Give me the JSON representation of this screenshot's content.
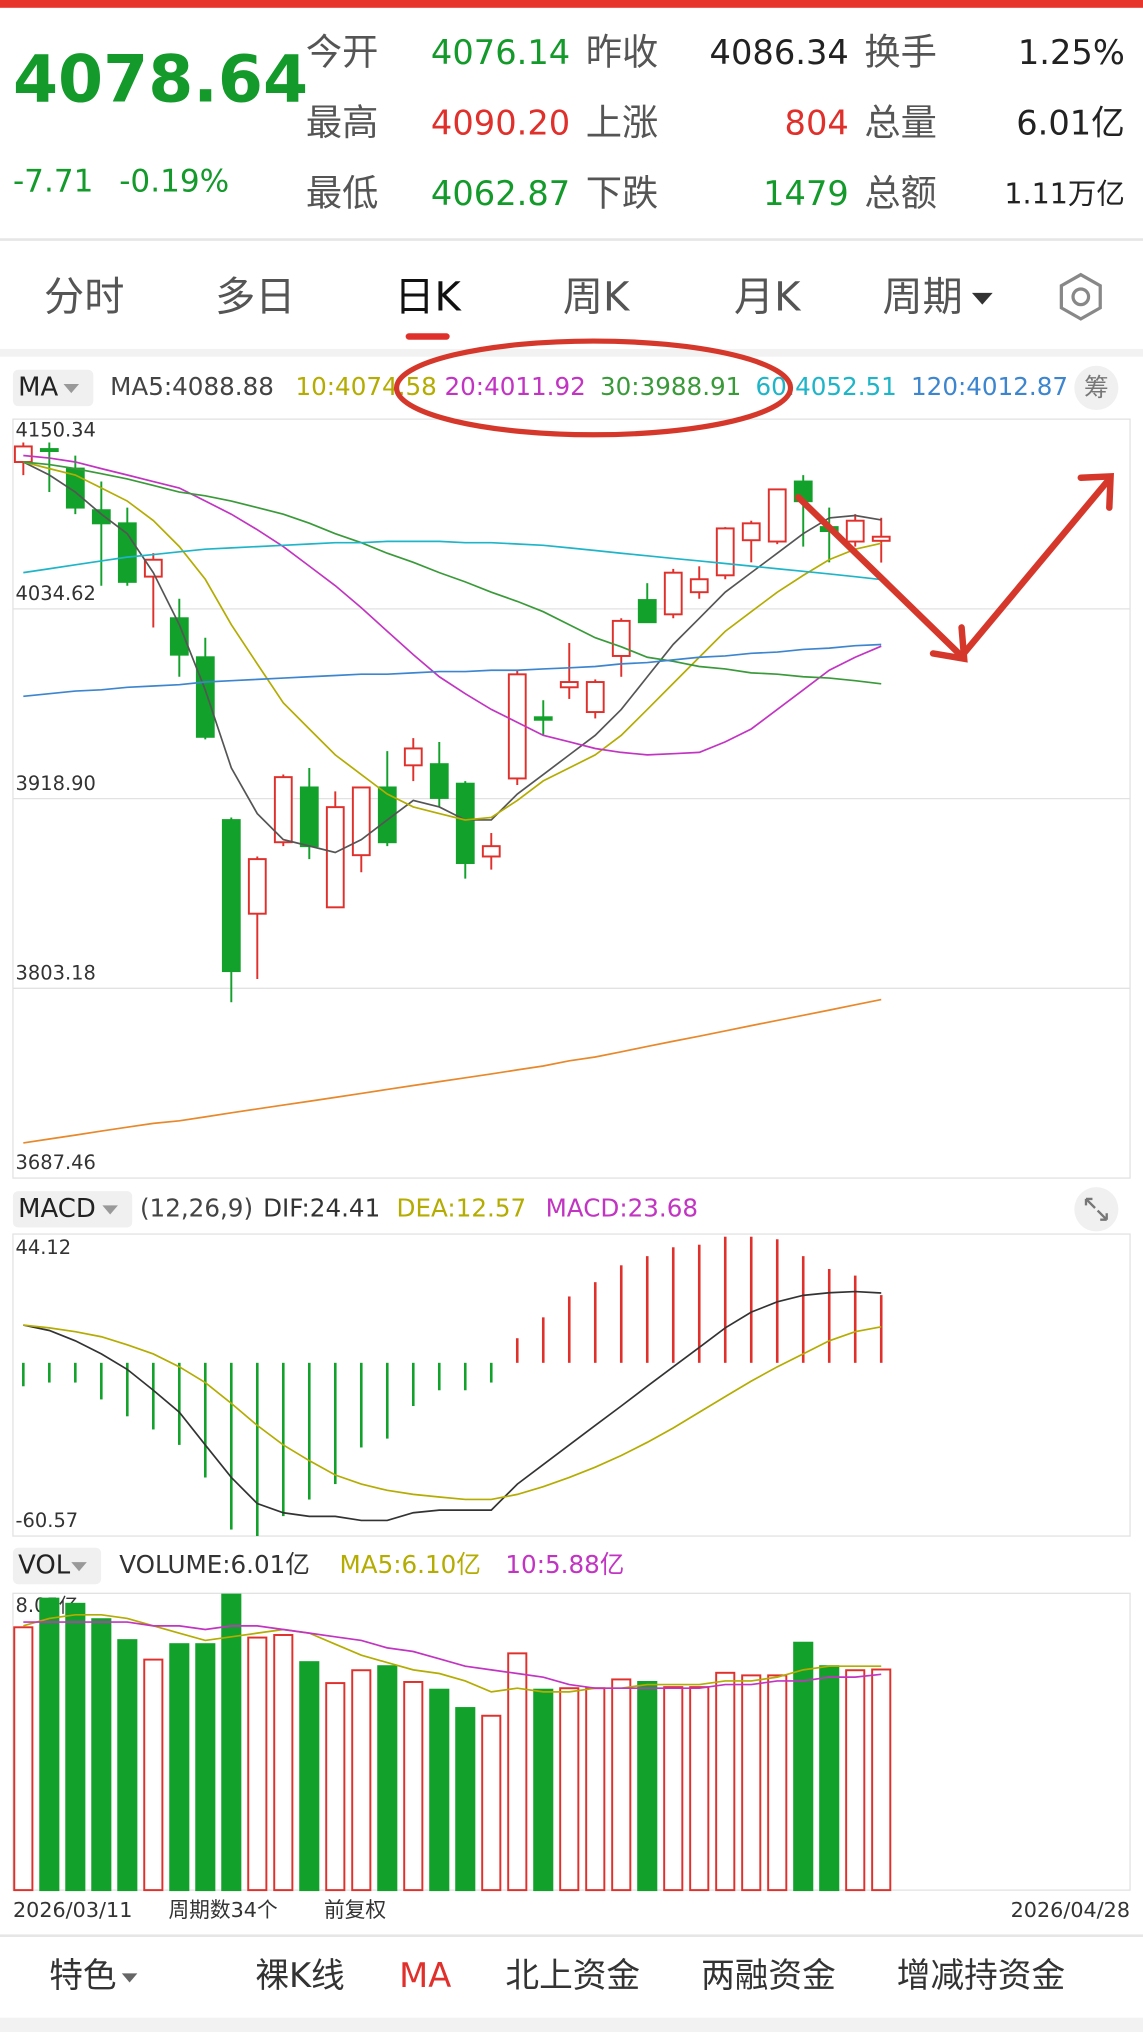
{
  "quote": {
    "price": "4078.64",
    "change": "-7.71",
    "change_pct": "-0.19%",
    "color": "#139a2b",
    "fields": [
      {
        "label": "今开",
        "value": "4076.14",
        "color": "#139a2b"
      },
      {
        "label": "昨收",
        "value": "4086.34",
        "color": "#222222"
      },
      {
        "label": "换手",
        "value": "1.25%",
        "color": "#222222"
      },
      {
        "label": "最高",
        "value": "4090.20",
        "color": "#e0302c"
      },
      {
        "label": "上涨",
        "value": "804",
        "color": "#e0302c"
      },
      {
        "label": "总量",
        "value": "6.01亿",
        "color": "#222222"
      },
      {
        "label": "最低",
        "value": "4062.87",
        "color": "#139a2b"
      },
      {
        "label": "下跌",
        "value": "1479",
        "color": "#139a2b"
      },
      {
        "label": "总额",
        "value": "1.11万亿",
        "color": "#222222"
      }
    ]
  },
  "tabs": {
    "items": [
      "分时",
      "多日",
      "日K",
      "周K",
      "月K",
      "周期"
    ],
    "active": 2
  },
  "bottom_tabs": {
    "items": [
      "特色",
      "裸K线",
      "MA",
      "北上资金",
      "两融资金",
      "增减持资金"
    ],
    "active": 2
  },
  "chart_data": [
    {
      "type": "candlestick",
      "indicator": "MA",
      "button": "筹",
      "legend": [
        "MA5:4088.88",
        "10:4074.58",
        "20:4011.92",
        "30:3988.91",
        "60:4052.51",
        "120:4012.87"
      ],
      "legend_colors": [
        "#444444",
        "#b4ac00",
        "#c234c2",
        "#3a9a3a",
        "#1fb5c8",
        "#3d86cf"
      ],
      "up_color": "#e0302c",
      "down_color": "#12a12a",
      "grid": true,
      "ylim": [
        3687.46,
        4150.34
      ],
      "yticks": [
        3687.46,
        3803.18,
        {
          "value": 3918.9,
          "label": "3918.90"
        },
        4034.62,
        4150.34
      ],
      "open": [
        4124.2,
        4132.1,
        4120.2,
        4094.8,
        4086.8,
        4054.3,
        4028.9,
        4005.1,
        3905.8,
        3848.7,
        3892.3,
        3925.7,
        3852.6,
        3884.4,
        3925.7,
        3939.2,
        3939.9,
        3928.0,
        3883.6,
        3931.2,
        3968.5,
        3986.8,
        3971.7,
        4005.9,
        4040.0,
        4031.3,
        4044.8,
        4055.1,
        4076.5,
        4075.7,
        4112.3,
        4084.5,
        4075.7,
        4076.14
      ],
      "high": [
        4136.1,
        4136.1,
        4128.1,
        4112.3,
        4096.4,
        4068.6,
        4040.8,
        4017.0,
        3907.4,
        3883.6,
        3933.6,
        3937.6,
        3923.3,
        3925.7,
        3947.9,
        3955.8,
        3953.4,
        3929.6,
        3897.9,
        3997.1,
        3978.9,
        4013.8,
        3991.6,
        4028.9,
        4050.3,
        4059.0,
        4060.6,
        4084.5,
        4088.4,
        4107.5,
        4116.2,
        4096.4,
        4092.4,
        4090.2
      ],
      "low": [
        4116.2,
        4105.9,
        4092.4,
        4048.7,
        4048.7,
        4023.3,
        3993.2,
        3955.0,
        3794.7,
        3808.9,
        3889.9,
        3882.0,
        3852.6,
        3874.0,
        3889.9,
        3929.6,
        3913.7,
        3870.1,
        3875.6,
        3927.2,
        3957.4,
        3979.7,
        3967.8,
        3993.2,
        4026.5,
        4028.9,
        4040.8,
        4052.7,
        4063.0,
        4074.1,
        4072.6,
        4063.0,
        4072.6,
        4062.87
      ],
      "close": [
        4133.7,
        4131.3,
        4096.4,
        4086.8,
        4051.1,
        4064.6,
        4006.7,
        3956.6,
        3813.7,
        3882.0,
        3932.0,
        3889.9,
        3913.7,
        3925.7,
        3892.3,
        3949.5,
        3919.3,
        3879.6,
        3889.9,
        3994.7,
        3967.0,
        3990.0,
        3990.0,
        4027.3,
        4026.5,
        4056.7,
        4052.7,
        4083.7,
        4086.8,
        4107.5,
        4100.3,
        4082.1,
        4088.4,
        4078.64
      ],
      "series": [
        {
          "color": "#555555",
          "values": [
            4124.2,
            4116.3,
            4105.9,
            4092.4,
            4080.5,
            4056.7,
            4025.0,
            3985.2,
            3937.6,
            3909.8,
            3893.9,
            3890.0,
            3886.0,
            3893.9,
            3905.9,
            3917.8,
            3913.8,
            3905.9,
            3905.9,
            3921.7,
            3933.6,
            3945.6,
            3957.5,
            3973.3,
            3993.2,
            4013.0,
            4028.9,
            4044.8,
            4056.7,
            4068.6,
            4080.5,
            4090.1,
            4091.6,
            4088.9
          ]
        },
        {
          "color": "#b4ac00",
          "values": [
            4124.2,
            4120.2,
            4116.3,
            4108.3,
            4100.4,
            4088.5,
            4072.6,
            4052.7,
            4025.0,
            4001.1,
            3977.3,
            3961.4,
            3945.6,
            3933.6,
            3921.7,
            3913.8,
            3909.8,
            3905.9,
            3907.4,
            3917.8,
            3929.7,
            3937.6,
            3945.6,
            3957.5,
            3973.3,
            3989.2,
            4005.1,
            4020.9,
            4032.9,
            4044.8,
            4055.1,
            4064.7,
            4071.0,
            4074.6
          ]
        },
        {
          "color": "#c234c2",
          "values": [
            4128.2,
            4126.6,
            4124.2,
            4120.2,
            4116.3,
            4112.3,
            4108.3,
            4100.4,
            4092.4,
            4082.9,
            4072.6,
            4060.7,
            4048.8,
            4035.3,
            4021.0,
            4006.7,
            3993.2,
            3982.9,
            3973.3,
            3965.4,
            3957.5,
            3953.5,
            3949.5,
            3947.1,
            3945.6,
            3946.3,
            3947.1,
            3953.5,
            3961.4,
            3973.3,
            3985.2,
            3997.2,
            4005.1,
            4011.9
          ]
        },
        {
          "color": "#3a9a3a",
          "values": [
            4124.2,
            4122.6,
            4120.2,
            4117.1,
            4113.9,
            4109.9,
            4105.9,
            4103.6,
            4100.4,
            4096.4,
            4092.4,
            4086.9,
            4080.5,
            4075.0,
            4068.6,
            4063.0,
            4056.7,
            4051.1,
            4044.8,
            4039.2,
            4032.9,
            4025.0,
            4017.0,
            4011.5,
            4005.1,
            4002.7,
            3999.5,
            3998.0,
            3995.6,
            3994.8,
            3993.2,
            3992.4,
            3990.8,
            3988.9
          ]
        },
        {
          "color": "#1fb5c8",
          "values": [
            4056.7,
            4059.1,
            4061.5,
            4063.9,
            4066.2,
            4067.8,
            4069.4,
            4071.0,
            4071.8,
            4072.6,
            4073.4,
            4074.2,
            4075.0,
            4075.0,
            4075.8,
            4075.8,
            4075.8,
            4075.0,
            4075.0,
            4074.2,
            4073.4,
            4071.8,
            4070.2,
            4068.6,
            4067.0,
            4065.4,
            4063.9,
            4062.3,
            4060.7,
            4059.1,
            4057.5,
            4055.9,
            4054.3,
            4052.5
          ]
        },
        {
          "color": "#3d86cf",
          "values": [
            3981.3,
            3982.9,
            3984.5,
            3985.3,
            3986.8,
            3987.6,
            3988.4,
            3990.0,
            3990.8,
            3991.6,
            3992.4,
            3993.2,
            3994.0,
            3994.8,
            3994.8,
            3995.6,
            3996.4,
            3996.4,
            3997.2,
            3997.2,
            3998.0,
            3998.7,
            3999.5,
            4001.1,
            4001.9,
            4003.5,
            4005.1,
            4005.9,
            4007.5,
            4008.3,
            4009.9,
            4010.7,
            4012.2,
            4012.9
          ]
        },
        {
          "color": "#e8882a",
          "values": [
            3708.9,
            3711.3,
            3713.7,
            3716.1,
            3718.5,
            3720.8,
            3722.4,
            3724.8,
            3727.2,
            3729.6,
            3732.0,
            3734.3,
            3736.7,
            3739.1,
            3741.5,
            3743.9,
            3746.3,
            3748.6,
            3751.0,
            3753.4,
            3755.8,
            3759.0,
            3761.3,
            3764.5,
            3767.7,
            3770.9,
            3774.0,
            3777.2,
            3780.4,
            3783.6,
            3786.7,
            3789.9,
            3793.1,
            3796.3
          ]
        }
      ]
    },
    {
      "type": "macd",
      "indicator": "MACD",
      "params": "(12,26,9)",
      "legend": [
        "DIF:24.41",
        "DEA:12.57",
        "MACD:23.68"
      ],
      "legend_colors": [
        "#333333",
        "#b4ac00",
        "#c234c2"
      ],
      "up_color": "#e0302c",
      "down_color": "#12a12a",
      "grid": false,
      "ylim": [
        -60.57,
        44.12
      ],
      "yticks": [
        44.12,
        -60.57
      ],
      "values": [
        -8.2,
        -6.9,
        -6.9,
        -12.8,
        -18.7,
        -23.3,
        -28.7,
        -40.1,
        -58.3,
        -60.57,
        -53.6,
        -47.8,
        -42.4,
        -29.6,
        -26.5,
        -15.1,
        -9.6,
        -9.6,
        -6.9,
        8.6,
        15.9,
        23.2,
        28.2,
        34.1,
        37.3,
        40.4,
        41.3,
        44.1,
        44.1,
        43.2,
        37.3,
        32.8,
        30.5,
        23.68
      ],
      "series": [
        {
          "color": "#333333",
          "values": [
            13.2,
            11.3,
            7.7,
            3.1,
            -2.3,
            -9.6,
            -17.3,
            -28.7,
            -40.1,
            -49.2,
            -52.4,
            -53.7,
            -53.7,
            -55.1,
            -55.1,
            -52.4,
            -51.5,
            -51.5,
            -51.5,
            -42.4,
            -35.6,
            -28.7,
            -21.9,
            -15.1,
            -8.2,
            -1.4,
            5.4,
            12.2,
            17.7,
            21.3,
            23.6,
            24.5,
            24.9,
            24.41
          ]
        },
        {
          "color": "#b4ac00",
          "values": [
            13.2,
            12.2,
            10.9,
            9.1,
            6.3,
            3.1,
            -1.4,
            -6.9,
            -14.2,
            -21.9,
            -28.7,
            -34.2,
            -39.2,
            -42.4,
            -44.6,
            -46.0,
            -46.9,
            -47.8,
            -47.8,
            -46.0,
            -43.3,
            -40.1,
            -36.5,
            -32.4,
            -27.8,
            -22.8,
            -17.3,
            -11.8,
            -6.4,
            -1.4,
            3.1,
            7.7,
            10.9,
            12.57
          ]
        }
      ]
    },
    {
      "type": "volume",
      "indicator": "VOL",
      "legend": [
        "VOLUME:6.01亿",
        "MA5:6.10亿",
        "10:5.88亿"
      ],
      "legend_colors": [
        "#333333",
        "#b4ac00",
        "#c234c2"
      ],
      "up_color": "#e0302c",
      "down_color": "#12a12a",
      "grid": false,
      "ylim": [
        0,
        8.05
      ],
      "yticks": [
        {
          "value": 8.05,
          "label": "8.05亿"
        }
      ],
      "categories": [
        "2026/03/11",
        null,
        null,
        null,
        null,
        null,
        null,
        null,
        null,
        null,
        null,
        null,
        null,
        null,
        null,
        null,
        null,
        null,
        null,
        null,
        null,
        null,
        null,
        null,
        null,
        null,
        null,
        null,
        null,
        null,
        null,
        null,
        null,
        "2026/04/28"
      ],
      "notes": [
        "周期数34个",
        "前复权"
      ],
      "values": [
        7.16,
        7.94,
        7.8,
        7.38,
        6.81,
        6.28,
        6.7,
        6.7,
        8.05,
        6.88,
        6.95,
        6.21,
        5.64,
        5.99,
        6.1,
        5.67,
        5.46,
        4.96,
        4.75,
        6.45,
        5.46,
        5.5,
        5.5,
        5.74,
        5.67,
        5.53,
        5.53,
        5.92,
        5.85,
        5.85,
        6.74,
        6.1,
        5.99,
        6.01
      ],
      "series": [
        {
          "color": "#b4ac00",
          "values": [
            7.2,
            7.4,
            7.5,
            7.5,
            7.4,
            7.2,
            7.0,
            6.8,
            6.9,
            7.0,
            7.1,
            7.0,
            6.7,
            6.4,
            6.2,
            6.0,
            5.9,
            5.7,
            5.4,
            5.5,
            5.4,
            5.4,
            5.5,
            5.5,
            5.6,
            5.6,
            5.6,
            5.7,
            5.7,
            5.8,
            6.0,
            6.1,
            6.1,
            6.1
          ]
        },
        {
          "color": "#c234c2",
          "values": [
            7.3,
            7.3,
            7.3,
            7.3,
            7.3,
            7.2,
            7.2,
            7.1,
            7.2,
            7.2,
            7.1,
            7.0,
            6.9,
            6.8,
            6.6,
            6.5,
            6.3,
            6.1,
            6.0,
            5.9,
            5.8,
            5.6,
            5.5,
            5.5,
            5.5,
            5.5,
            5.5,
            5.6,
            5.6,
            5.7,
            5.7,
            5.8,
            5.8,
            5.88
          ]
        }
      ]
    }
  ]
}
